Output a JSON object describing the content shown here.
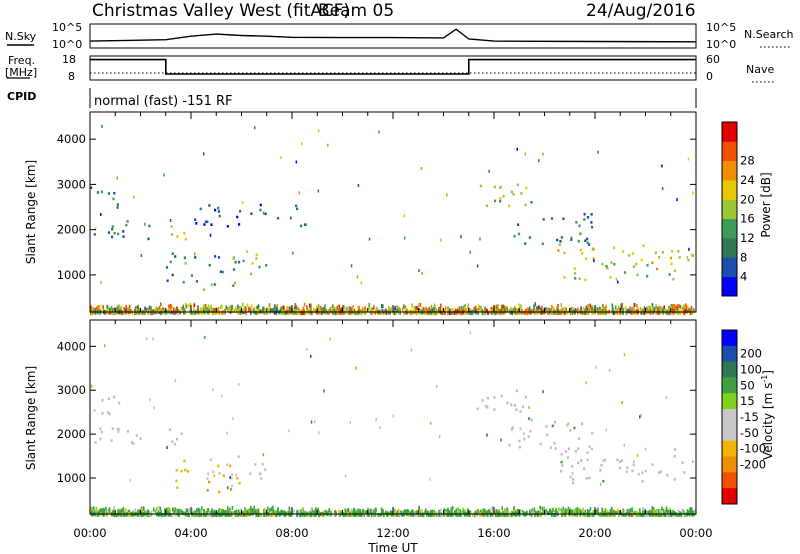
{
  "header": {
    "title": "Christmas Valley West (fitACF)",
    "beam": "Beam 05",
    "date": "24/Aug/2016"
  },
  "top_panels": {
    "nsky_label": "N.Sky",
    "nsky_ticks": [
      "10^5",
      "10^0"
    ],
    "nsearch_label": "N.Search",
    "nsearch_ticks": [
      "10^5",
      "10^0"
    ],
    "freq_label_1": "Freq.",
    "freq_label_2": "[MHz]",
    "freq_ticks": [
      "18",
      "8"
    ],
    "nave_label": "Nave",
    "nave_ticks": [
      "60",
      "0"
    ],
    "cpid_label": "CPID",
    "cpid_text": "normal (fast) -151 RF"
  },
  "colors": {
    "power_scale": [
      "#0000ff",
      "#1e4db0",
      "#2e7a52",
      "#3e9a5a",
      "#9bc832",
      "#e8c800",
      "#f08c00",
      "#f05000",
      "#e00000"
    ],
    "velocity_scale": [
      "#e00000",
      "#f05000",
      "#f08c00",
      "#f0b400",
      "#c8c8c8",
      "#c8c8c8",
      "#80d020",
      "#3ea040",
      "#2e7a52",
      "#1e4db0",
      "#0000ff"
    ],
    "ground_scatter": "#bebebe"
  },
  "chart_data": [
    {
      "type": "line",
      "name": "nsky",
      "x": [
        0,
        3,
        4,
        5,
        6,
        7,
        8,
        10,
        12,
        14,
        14.5,
        15,
        16,
        20,
        24
      ],
      "y": [
        0.35,
        0.45,
        0.7,
        0.85,
        0.75,
        0.7,
        0.62,
        0.6,
        0.6,
        0.58,
        1.2,
        0.5,
        0.35,
        0.32,
        0.3
      ]
    },
    {
      "type": "line",
      "name": "frequency",
      "ylabel": "Freq. [MHz]",
      "ylim": [
        8,
        18
      ],
      "x": [
        0,
        3.0,
        3.0,
        15.0,
        15.0,
        24
      ],
      "y": [
        16.5,
        16.5,
        10.5,
        10.5,
        16.5,
        16.5
      ]
    },
    {
      "type": "heatmap",
      "name": "power",
      "title": "Power [dB]",
      "xlabel": "Time UT",
      "ylabel": "Slant Range [km]",
      "xlim": [
        0,
        24
      ],
      "ylim": [
        180,
        4600
      ],
      "x_ticks": [
        "00:00",
        "04:00",
        "08:00",
        "12:00",
        "16:00",
        "20:00",
        "00:00"
      ],
      "y_ticks": [
        1000,
        2000,
        3000,
        4000
      ],
      "colorbar_ticks": [
        4,
        8,
        12,
        16,
        20,
        24,
        28
      ],
      "colorbar_label": "Power [dB]",
      "regions": [
        {
          "t0": 0.0,
          "t1": 1.3,
          "r0": 2450,
          "r1": 3000,
          "p": 10
        },
        {
          "t0": 0.0,
          "t1": 2.5,
          "r0": 1800,
          "r1": 2250,
          "p": 8
        },
        {
          "t0": 3.0,
          "t1": 3.8,
          "r0": 1600,
          "r1": 2150,
          "p": 20
        },
        {
          "t0": 3.0,
          "t1": 6.0,
          "r0": 700,
          "r1": 1500,
          "p": 12
        },
        {
          "t0": 5.8,
          "t1": 7.0,
          "r0": 950,
          "r1": 1550,
          "p": 18
        },
        {
          "t0": 4.0,
          "t1": 8.5,
          "r0": 2100,
          "r1": 2600,
          "p": 6
        },
        {
          "t0": 15.2,
          "t1": 17.5,
          "r0": 2400,
          "r1": 3050,
          "p": 16
        },
        {
          "t0": 16.5,
          "t1": 20.0,
          "r0": 1700,
          "r1": 2400,
          "p": 10
        },
        {
          "t0": 18.5,
          "t1": 24.0,
          "r0": 900,
          "r1": 1700,
          "p": 20
        }
      ],
      "near_range": {
        "r0": 200,
        "r1": 400,
        "p": 20
      }
    },
    {
      "type": "heatmap",
      "name": "velocity",
      "title": "Velocity [m s^-1]",
      "xlabel": "Time UT",
      "ylabel": "Slant Range [km]",
      "xlim": [
        0,
        24
      ],
      "ylim": [
        180,
        4600
      ],
      "x_ticks": [
        "00:00",
        "04:00",
        "08:00",
        "12:00",
        "16:00",
        "20:00",
        "00:00"
      ],
      "y_ticks": [
        1000,
        2000,
        3000,
        4000
      ],
      "colorbar_ticks": [
        200,
        100,
        50,
        15,
        -15,
        -50,
        -100,
        -200
      ],
      "colorbar_label": "Velocity [m s",
      "colorbar_label_sup": "-1",
      "colorbar_label_end": "]",
      "regions": [
        {
          "t0": 0.0,
          "t1": 1.3,
          "r0": 2450,
          "r1": 3000,
          "v": 0,
          "gs": true
        },
        {
          "t0": 0.0,
          "t1": 2.5,
          "r0": 1800,
          "r1": 2250,
          "v": 0,
          "gs": true
        },
        {
          "t0": 3.0,
          "t1": 3.8,
          "r0": 1600,
          "r1": 2150,
          "v": 0,
          "gs": true
        },
        {
          "t0": 3.2,
          "t1": 6.0,
          "r0": 700,
          "r1": 1500,
          "v": -70
        },
        {
          "t0": 5.8,
          "t1": 7.0,
          "r0": 950,
          "r1": 1550,
          "v": 0,
          "gs": true
        },
        {
          "t0": 15.2,
          "t1": 17.5,
          "r0": 2400,
          "r1": 3050,
          "v": 0,
          "gs": true
        },
        {
          "t0": 16.5,
          "t1": 20.0,
          "r0": 1700,
          "r1": 2400,
          "v": 0,
          "gs": true
        },
        {
          "t0": 18.5,
          "t1": 24.0,
          "r0": 900,
          "r1": 1700,
          "v": 0,
          "gs": true
        }
      ],
      "near_range": {
        "r0": 200,
        "r1": 380,
        "v": 30
      }
    }
  ]
}
